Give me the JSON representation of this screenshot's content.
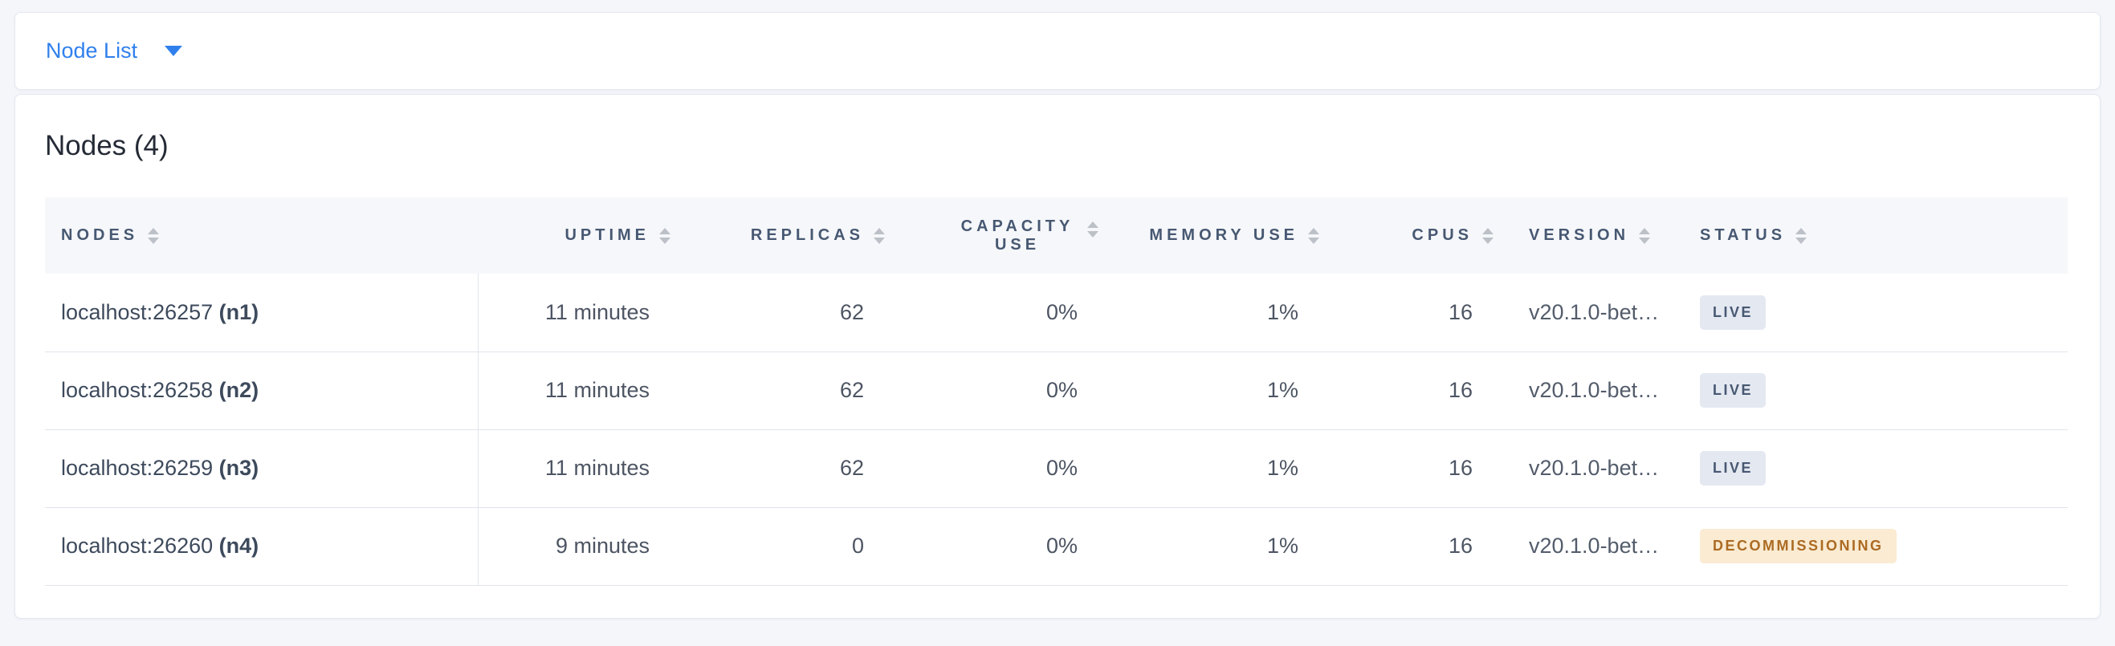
{
  "topbar": {
    "dropdown_label": "Node List"
  },
  "main": {
    "title": "Nodes (4)",
    "table": {
      "columns": [
        {
          "label": "NODES",
          "align": "left"
        },
        {
          "label": "UPTIME",
          "align": "right"
        },
        {
          "label": "REPLICAS",
          "align": "right"
        },
        {
          "label": "CAPACITY USE",
          "align": "right"
        },
        {
          "label": "MEMORY USE",
          "align": "right"
        },
        {
          "label": "CPUS",
          "align": "right"
        },
        {
          "label": "VERSION",
          "align": "left"
        },
        {
          "label": "STATUS",
          "align": "left"
        }
      ],
      "rows": [
        {
          "address": "localhost:26257",
          "node_id": "(n1)",
          "uptime": "11 minutes",
          "replicas": "62",
          "capacity_use": "0%",
          "memory_use": "1%",
          "cpus": "16",
          "version": "v20.1.0-bet…",
          "status": "LIVE",
          "status_type": "live"
        },
        {
          "address": "localhost:26258",
          "node_id": "(n2)",
          "uptime": "11 minutes",
          "replicas": "62",
          "capacity_use": "0%",
          "memory_use": "1%",
          "cpus": "16",
          "version": "v20.1.0-bet…",
          "status": "LIVE",
          "status_type": "live"
        },
        {
          "address": "localhost:26259",
          "node_id": "(n3)",
          "uptime": "11 minutes",
          "replicas": "62",
          "capacity_use": "0%",
          "memory_use": "1%",
          "cpus": "16",
          "version": "v20.1.0-bet…",
          "status": "LIVE",
          "status_type": "live"
        },
        {
          "address": "localhost:26260",
          "node_id": "(n4)",
          "uptime": "9 minutes",
          "replicas": "0",
          "capacity_use": "0%",
          "memory_use": "1%",
          "cpus": "16",
          "version": "v20.1.0-bet…",
          "status": "DECOMMISSIONING",
          "status_type": "decommissioning"
        }
      ]
    }
  },
  "colors": {
    "accent_blue": "#2F80ED",
    "badge_live_bg": "#E4E8F1",
    "badge_live_text": "#475872",
    "badge_decommissioning_bg": "#FAEBD2",
    "badge_decommissioning_text": "#AC6B23",
    "header_text": "#475872",
    "page_background": "#F4F6FA"
  }
}
